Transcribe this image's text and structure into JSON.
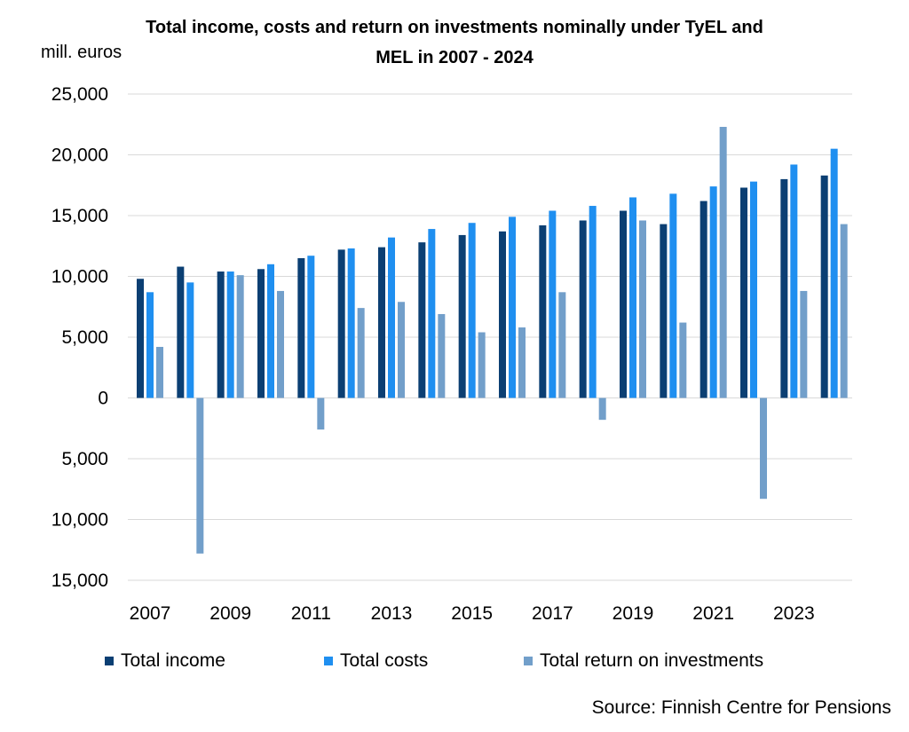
{
  "title_line1": "Total income, costs and return on investments nominally under TyEL and",
  "title_line2": "MEL in 2007 - 2024",
  "unit_label": "mill. euros",
  "source": "Source: Finnish Centre for Pensions",
  "colors": {
    "income": "#0b3f73",
    "costs": "#1f8ff0",
    "returns": "#729fca",
    "grid": "#d9d9d9"
  },
  "chart_data": {
    "type": "bar",
    "title": "Total income, costs and return on investments nominally under TyEL and MEL in 2007 - 2024",
    "ylabel": "mill. euros",
    "ylim": [
      -15000,
      25000
    ],
    "ytick_values": [
      25000,
      20000,
      15000,
      10000,
      5000,
      0,
      -5000,
      -10000,
      -15000
    ],
    "ytick_labels": [
      "25,000",
      "20,000",
      "15,000",
      "10,000",
      "5,000",
      "0",
      "5,000",
      "10,000",
      "15,000"
    ],
    "categories": [
      "2007",
      "2008",
      "2009",
      "2010",
      "2011",
      "2012",
      "2013",
      "2014",
      "2015",
      "2016",
      "2017",
      "2018",
      "2019",
      "2020",
      "2021",
      "2022",
      "2023",
      "2024"
    ],
    "xtick_labels": [
      "2007",
      "",
      "2009",
      "",
      "2011",
      "",
      "2013",
      "",
      "2015",
      "",
      "2017",
      "",
      "2019",
      "",
      "2021",
      "",
      "2023",
      ""
    ],
    "grid": true,
    "legend_position": "bottom",
    "series": [
      {
        "name": "Total income",
        "values": [
          9800,
          10800,
          10400,
          10600,
          11500,
          12200,
          12400,
          12800,
          13400,
          13700,
          14200,
          14600,
          15400,
          14300,
          16200,
          17300,
          18000,
          18300
        ]
      },
      {
        "name": "Total costs",
        "values": [
          8700,
          9500,
          10400,
          11000,
          11700,
          12300,
          13200,
          13900,
          14400,
          14900,
          15400,
          15800,
          16500,
          16800,
          17400,
          17800,
          19200,
          20500
        ]
      },
      {
        "name": "Total return on investments",
        "values": [
          4200,
          -12800,
          10100,
          8800,
          -2600,
          7400,
          7900,
          6900,
          5400,
          5800,
          8700,
          -1800,
          14600,
          6200,
          22300,
          -8300,
          8800,
          14300
        ]
      }
    ]
  }
}
